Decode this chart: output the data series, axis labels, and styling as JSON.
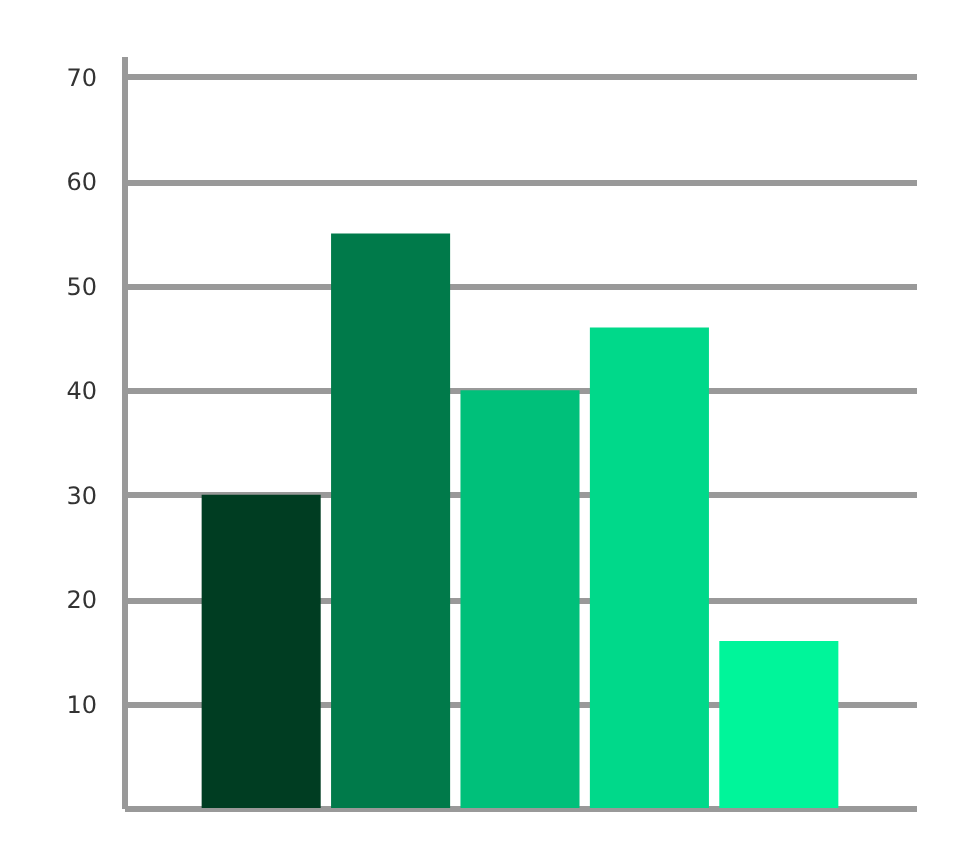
{
  "chart_data": {
    "type": "bar",
    "categories": [
      null,
      null,
      null,
      null,
      null
    ],
    "values": [
      30,
      55,
      40,
      46,
      16
    ],
    "colors": [
      "#003d22",
      "#007a4a",
      "#00c07a",
      "#00d98a",
      "#00f59a"
    ],
    "ylim": [
      0,
      72
    ],
    "yticks": [
      10,
      20,
      30,
      40,
      50,
      60,
      70
    ],
    "grid": "y",
    "tick_labels": "y"
  }
}
